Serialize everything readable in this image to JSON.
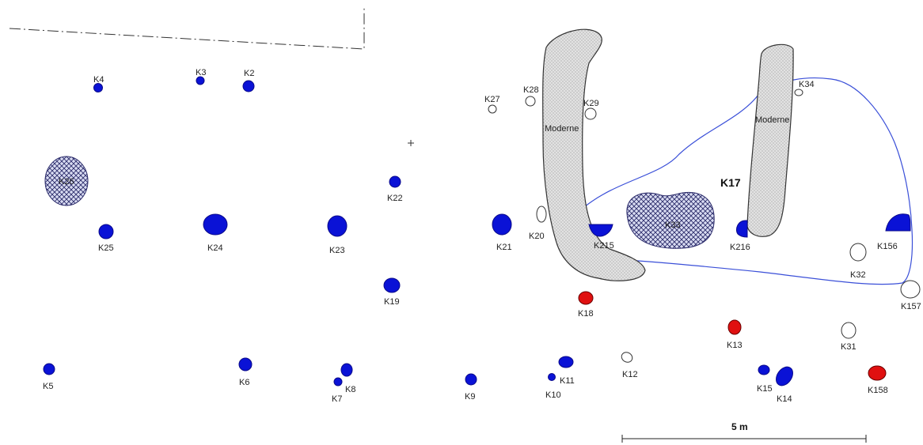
{
  "map": {
    "features": {
      "k2": "K2",
      "k3": "K3",
      "k4": "K4",
      "k5": "K5",
      "k6": "K6",
      "k7": "K7",
      "k8": "K8",
      "k9": "K9",
      "k10": "K10",
      "k11": "K11",
      "k12": "K12",
      "k13": "K13",
      "k14": "K14",
      "k15": "K15",
      "k17": "K17",
      "k18": "K18",
      "k19": "K19",
      "k20": "K20",
      "k21": "K21",
      "k22": "K22",
      "k23": "K23",
      "k24": "K24",
      "k25": "K25",
      "k26": "K26",
      "k27": "K27",
      "k28": "K28",
      "k29": "K29",
      "k31": "K31",
      "k32": "K32",
      "k33": "K33",
      "k34": "K34",
      "k156": "K156",
      "k157": "K157",
      "k158": "K158",
      "k215": "K215",
      "k216": "K216"
    },
    "modern_labels": {
      "left": "Moderne",
      "right": "Moderne"
    },
    "scale_label": "5 m",
    "colors": {
      "pit_blue": "#0a12d6",
      "pit_red": "#e01010",
      "outline_blue": "#3a4fd8",
      "hatch": "#2b2b6a",
      "modern_fill": "#cfcfcf"
    }
  }
}
